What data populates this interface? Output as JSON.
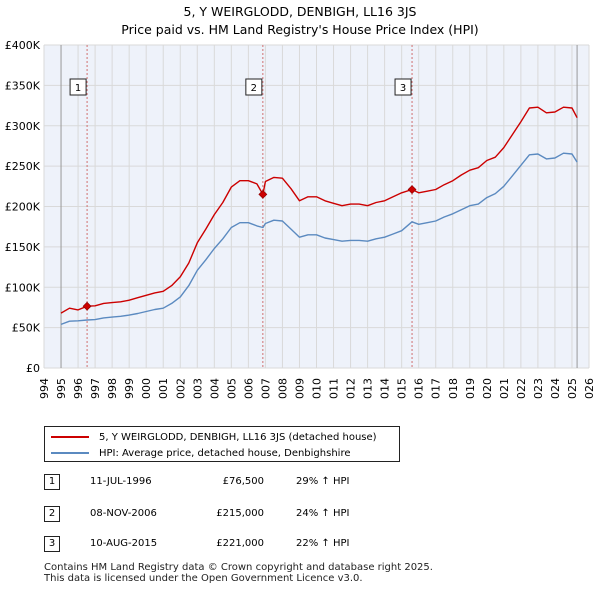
{
  "colors": {
    "property_line": "#cc0000",
    "hpi_line": "#5b8ac0",
    "grid": "#d9d9d9",
    "plot_bg": "#eef2fa",
    "marker_line": "#d07070"
  },
  "legend": {
    "property_label": "5, Y WEIRGLODD, DENBIGH, LL16 3JS (detached house)",
    "hpi_label": "HPI: Average price, detached house, Denbighshire"
  },
  "transactions": [
    {
      "num": "1",
      "date": "11-JUL-1996",
      "price": "£76,500",
      "change": "29% ↑ HPI"
    },
    {
      "num": "2",
      "date": "08-NOV-2006",
      "price": "£215,000",
      "change": "24% ↑ HPI"
    },
    {
      "num": "3",
      "date": "10-AUG-2015",
      "price": "£221,000",
      "change": "22% ↑ HPI"
    }
  ],
  "footer": {
    "line1": "Contains HM Land Registry data © Crown copyright and database right 2025.",
    "line2": "This data is licensed under the Open Government Licence v3.0."
  },
  "chart_data": {
    "type": "line",
    "title": "5, Y WEIRGLODD, DENBIGH, LL16 3JS",
    "subtitle": "Price paid vs. HM Land Registry's House Price Index (HPI)",
    "xlabel": "",
    "ylabel": "",
    "xlim": [
      1994,
      2026
    ],
    "ylim": [
      0,
      400000
    ],
    "x_ticks": [
      1994,
      1995,
      1996,
      1997,
      1998,
      1999,
      2000,
      2001,
      2002,
      2003,
      2004,
      2005,
      2006,
      2007,
      2008,
      2009,
      2010,
      2011,
      2012,
      2013,
      2014,
      2015,
      2016,
      2017,
      2018,
      2019,
      2020,
      2021,
      2022,
      2023,
      2024,
      2025,
      2026
    ],
    "y_ticks": [
      0,
      50000,
      100000,
      150000,
      200000,
      250000,
      300000,
      350000,
      400000
    ],
    "y_tick_labels": [
      "£0",
      "£50K",
      "£100K",
      "£150K",
      "£200K",
      "£250K",
      "£300K",
      "£350K",
      "£400K"
    ],
    "grid": true,
    "legend_position": "below-left",
    "data_range": [
      1995.0,
      2025.3
    ],
    "series": [
      {
        "name": "5, Y WEIRGLODD, DENBIGH, LL16 3JS (detached house)",
        "x": [
          1995.0,
          1995.5,
          1996.0,
          1996.53,
          1997.0,
          1997.5,
          1998.0,
          1998.5,
          1999.0,
          1999.5,
          2000.0,
          2000.5,
          2001.0,
          2001.5,
          2002.0,
          2002.5,
          2003.0,
          2003.5,
          2004.0,
          2004.5,
          2005.0,
          2005.5,
          2006.0,
          2006.5,
          2006.85,
          2007.0,
          2007.5,
          2008.0,
          2008.5,
          2009.0,
          2009.5,
          2010.0,
          2010.5,
          2011.0,
          2011.5,
          2012.0,
          2012.5,
          2013.0,
          2013.5,
          2014.0,
          2014.5,
          2015.0,
          2015.61,
          2016.0,
          2016.5,
          2017.0,
          2017.5,
          2018.0,
          2018.5,
          2019.0,
          2019.5,
          2020.0,
          2020.5,
          2021.0,
          2021.5,
          2022.0,
          2022.5,
          2023.0,
          2023.5,
          2024.0,
          2024.5,
          2025.0,
          2025.3
        ],
        "values": [
          68000,
          74000,
          72000,
          76500,
          77000,
          80000,
          81000,
          82000,
          84000,
          87000,
          90000,
          93000,
          95000,
          102000,
          113000,
          130000,
          155000,
          172000,
          190000,
          205000,
          224000,
          232000,
          232000,
          228000,
          215000,
          231000,
          236000,
          235000,
          222000,
          207000,
          212000,
          212000,
          207000,
          204000,
          201000,
          203000,
          203000,
          201000,
          205000,
          207000,
          212000,
          217000,
          221000,
          217000,
          219000,
          221000,
          227000,
          232000,
          239000,
          245000,
          248000,
          257000,
          261000,
          273000,
          289000,
          305000,
          322000,
          323000,
          316000,
          317000,
          323000,
          322000,
          310000
        ]
      },
      {
        "name": "HPI: Average price, detached house, Denbighshire",
        "x": [
          1995.0,
          1995.5,
          1996.0,
          1996.53,
          1997.0,
          1997.5,
          1998.0,
          1998.5,
          1999.0,
          1999.5,
          2000.0,
          2000.5,
          2001.0,
          2001.5,
          2002.0,
          2002.5,
          2003.0,
          2003.5,
          2004.0,
          2004.5,
          2005.0,
          2005.5,
          2006.0,
          2006.5,
          2006.85,
          2007.0,
          2007.5,
          2008.0,
          2008.5,
          2009.0,
          2009.5,
          2010.0,
          2010.5,
          2011.0,
          2011.5,
          2012.0,
          2012.5,
          2013.0,
          2013.5,
          2014.0,
          2014.5,
          2015.0,
          2015.61,
          2016.0,
          2016.5,
          2017.0,
          2017.5,
          2018.0,
          2018.5,
          2019.0,
          2019.5,
          2020.0,
          2020.5,
          2021.0,
          2021.5,
          2022.0,
          2022.5,
          2023.0,
          2023.5,
          2024.0,
          2024.5,
          2025.0,
          2025.3
        ],
        "values": [
          54000,
          58000,
          58500,
          59500,
          60000,
          62000,
          63000,
          64000,
          65500,
          67500,
          70000,
          72500,
          74000,
          80000,
          88000,
          102000,
          121000,
          134000,
          148000,
          160000,
          174000,
          180000,
          180000,
          176000,
          174000,
          179000,
          183000,
          182000,
          172000,
          162000,
          165000,
          165000,
          161000,
          159000,
          157000,
          158000,
          158000,
          157000,
          160000,
          162000,
          166000,
          170000,
          181000,
          178000,
          180000,
          182000,
          187000,
          191000,
          196000,
          201000,
          203000,
          211000,
          216000,
          225000,
          238000,
          251000,
          264000,
          265000,
          259000,
          260000,
          266000,
          265000,
          255000
        ]
      }
    ],
    "sale_points": [
      {
        "label": "1",
        "x": 1996.53,
        "value": 76500
      },
      {
        "label": "2",
        "x": 2006.85,
        "value": 215000
      },
      {
        "label": "3",
        "x": 2015.61,
        "value": 221000
      }
    ]
  }
}
